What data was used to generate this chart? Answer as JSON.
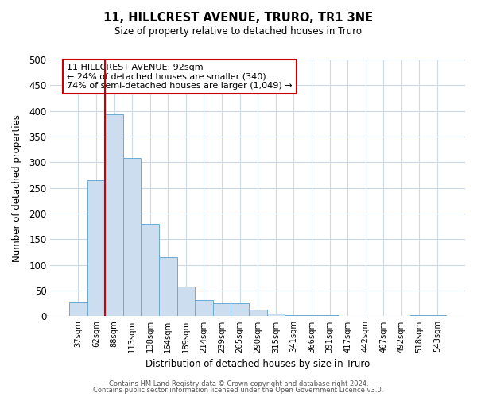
{
  "title": "11, HILLCREST AVENUE, TRURO, TR1 3NE",
  "subtitle": "Size of property relative to detached houses in Truro",
  "xlabel": "Distribution of detached houses by size in Truro",
  "ylabel": "Number of detached properties",
  "bar_labels": [
    "37sqm",
    "62sqm",
    "88sqm",
    "113sqm",
    "138sqm",
    "164sqm",
    "189sqm",
    "214sqm",
    "239sqm",
    "265sqm",
    "290sqm",
    "315sqm",
    "341sqm",
    "366sqm",
    "391sqm",
    "417sqm",
    "442sqm",
    "467sqm",
    "492sqm",
    "518sqm",
    "543sqm"
  ],
  "bar_values": [
    28,
    265,
    393,
    308,
    180,
    115,
    58,
    32,
    25,
    25,
    13,
    6,
    2,
    2,
    2,
    1,
    1,
    1,
    0,
    2,
    2
  ],
  "bar_color": "#ccddf0",
  "bar_edge_color": "#6aaad4",
  "vline_x_index": 2,
  "vline_color": "#cc0000",
  "annotation_text": "11 HILLCREST AVENUE: 92sqm\n← 24% of detached houses are smaller (340)\n74% of semi-detached houses are larger (1,049) →",
  "annotation_box_color": "#ffffff",
  "annotation_box_edge": "#cc0000",
  "ylim": [
    0,
    500
  ],
  "yticks": [
    0,
    50,
    100,
    150,
    200,
    250,
    300,
    350,
    400,
    450,
    500
  ],
  "footer1": "Contains HM Land Registry data © Crown copyright and database right 2024.",
  "footer2": "Contains public sector information licensed under the Open Government Licence v3.0.",
  "bg_color": "#ffffff",
  "grid_color": "#ccd9e8"
}
